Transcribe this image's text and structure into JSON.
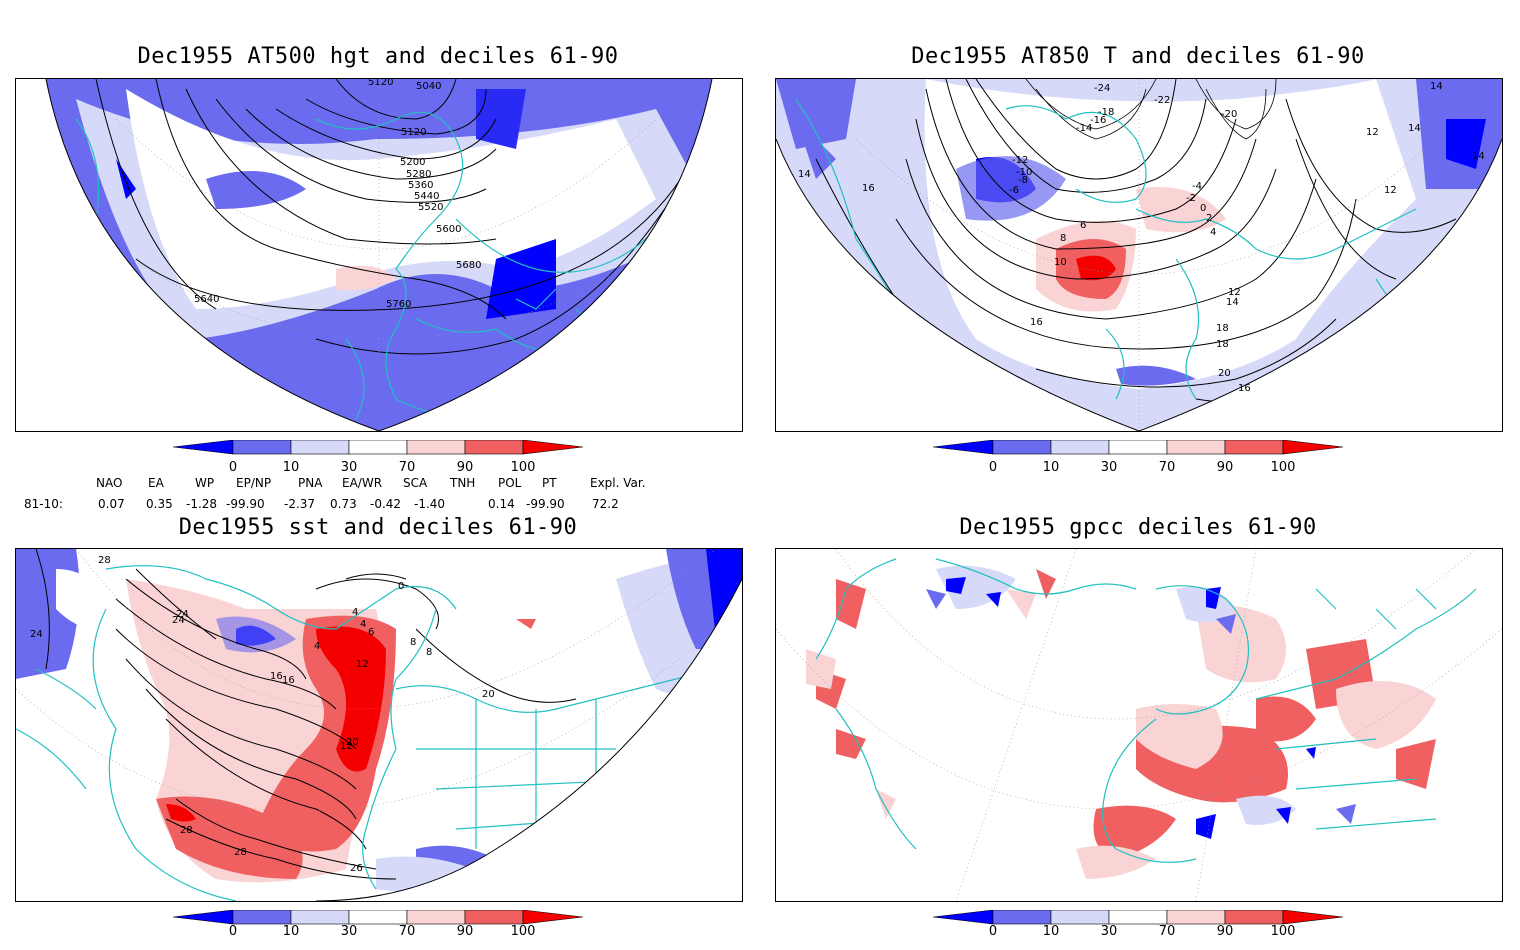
{
  "panels": {
    "p1": {
      "title": "Dec1955 AT500 hgt and deciles 61-90"
    },
    "p2": {
      "title": "Dec1955 AT850 T and deciles 61-90"
    },
    "p3": {
      "title": "Dec1955 sst and deciles 61-90"
    },
    "p4": {
      "title": "Dec1955 gpcc deciles 61-90"
    }
  },
  "contour_labels": {
    "p1": [
      "5040",
      "5120",
      "5120",
      "5200",
      "5280",
      "5360",
      "5440",
      "5520",
      "5600",
      "5680",
      "5760",
      "5640"
    ],
    "p2": [
      "-24",
      "-22",
      "-20",
      "-18",
      "-16",
      "-14",
      "-12",
      "-10",
      "-8",
      "-6",
      "-4",
      "-2",
      "0",
      "2",
      "4",
      "6",
      "8",
      "10",
      "12",
      "14",
      "16",
      "18",
      "20",
      "16",
      "14",
      "14",
      "14",
      "14",
      "16",
      "12",
      "12",
      "18"
    ],
    "p3": [
      "28",
      "24",
      "24",
      "20",
      "16",
      "12",
      "8",
      "4",
      "4",
      "0",
      "4",
      "6",
      "8",
      "12",
      "16",
      "20",
      "24",
      "26",
      "28",
      "28"
    ]
  },
  "colorbar": {
    "labels": [
      "0",
      "10",
      "30",
      "70",
      "90",
      "100"
    ],
    "colors": [
      "#0000ff",
      "#6b6bf0",
      "#d6d9f8",
      "#ffffff",
      "#fad4d4",
      "#f06060",
      "#f40000"
    ]
  },
  "indices": {
    "header": [
      "NAO",
      "EA",
      "WP",
      "EP/NP",
      "PNA",
      "EA/WR",
      "SCA",
      "TNH",
      "POL",
      "PT",
      "Expl. Var."
    ],
    "row_label": "81-10:",
    "values": [
      "0.07",
      "0.35",
      "-1.28",
      "-99.90",
      "-2.37",
      "0.73",
      "-0.42",
      "-1.40",
      "0.14",
      "-99.90",
      "72.2"
    ]
  },
  "colors": {
    "coast": "#20c0c0",
    "contour": "#000000"
  }
}
